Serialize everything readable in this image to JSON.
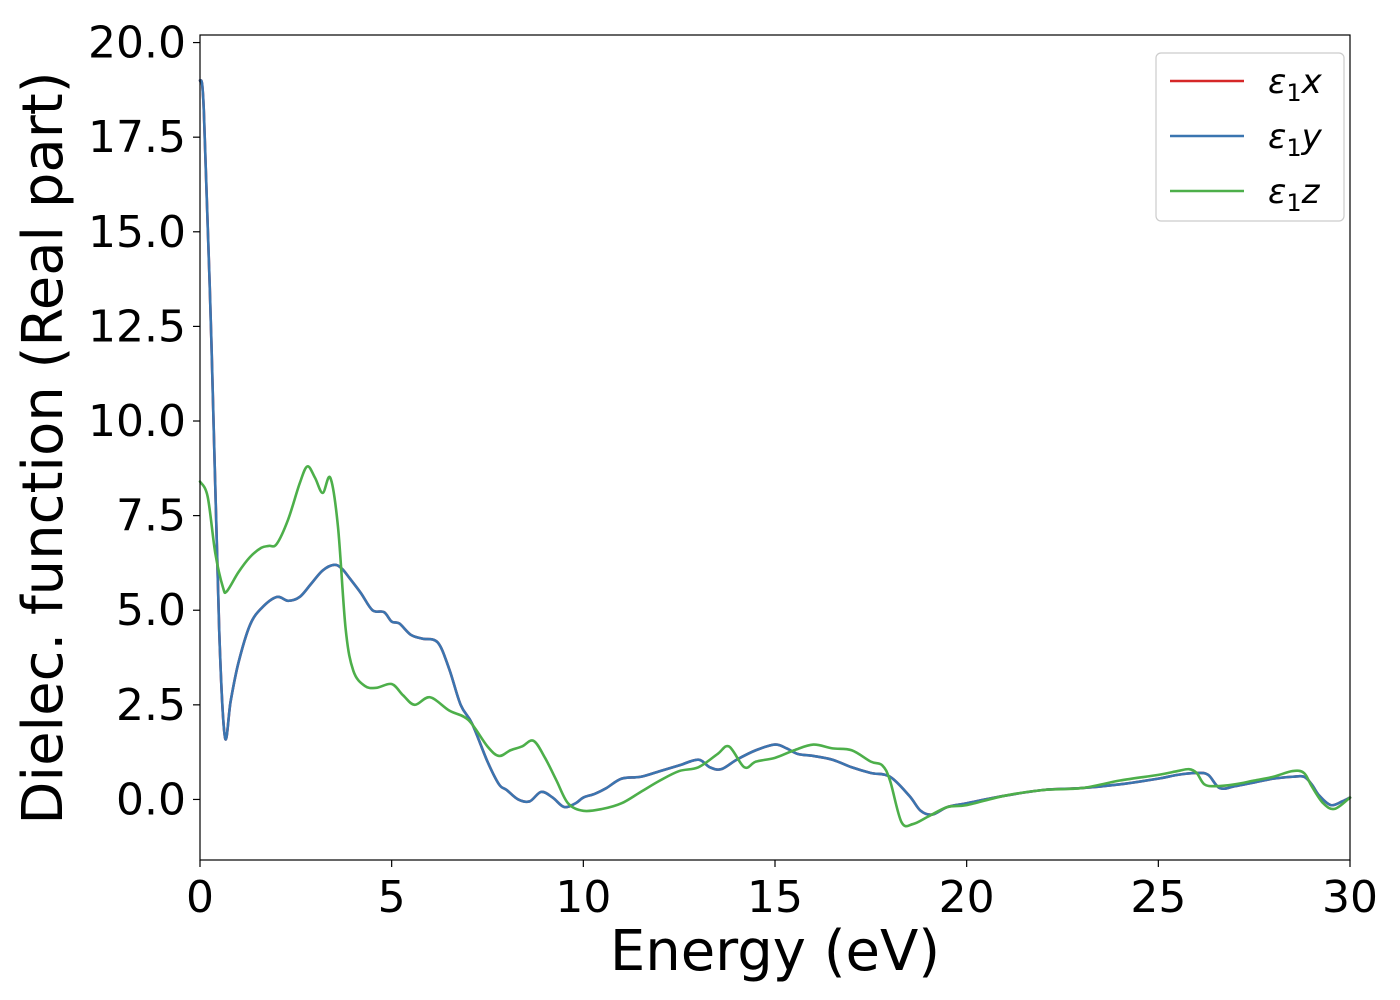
{
  "chart_data": {
    "type": "line",
    "xlabel": "Energy (eV)",
    "ylabel": "Dielec. function (Real part)",
    "xlim": [
      0,
      30
    ],
    "ylim": [
      -1.6,
      20.2
    ],
    "xticks": [
      0,
      5,
      10,
      15,
      20,
      25,
      30
    ],
    "xtick_labels": [
      "0",
      "5",
      "10",
      "15",
      "20",
      "25",
      "30"
    ],
    "yticks": [
      0.0,
      2.5,
      5.0,
      7.5,
      10.0,
      12.5,
      15.0,
      17.5,
      20.0
    ],
    "ytick_labels": [
      "0.0",
      "2.5",
      "5.0",
      "7.5",
      "10.0",
      "12.5",
      "15.0",
      "17.5",
      "20.0"
    ],
    "grid": false,
    "legend_position": "top-right",
    "series": [
      {
        "name": "ε1x",
        "label_base": "ε",
        "label_sub": "1",
        "label_var": "x",
        "color": "#d62728",
        "x": [
          0,
          0.1,
          0.3,
          0.5,
          0.65,
          0.8,
          1.0,
          1.3,
          1.6,
          2.0,
          2.3,
          2.6,
          2.9,
          3.2,
          3.5,
          3.7,
          3.9,
          4.2,
          4.5,
          4.8,
          5.0,
          5.2,
          5.5,
          5.8,
          6.2,
          6.5,
          6.8,
          7.1,
          7.5,
          7.8,
          8.0,
          8.3,
          8.6,
          8.9,
          9.2,
          9.5,
          9.8,
          10.0,
          10.3,
          10.6,
          11.0,
          11.5,
          12.0,
          12.5,
          13.0,
          13.3,
          13.6,
          14.0,
          14.5,
          15.0,
          15.3,
          15.6,
          16.0,
          16.5,
          17.0,
          17.5,
          18.0,
          18.5,
          18.8,
          19.1,
          19.5,
          20.0,
          21.0,
          22.0,
          23.0,
          24.0,
          25.0,
          25.5,
          26.0,
          26.3,
          26.6,
          27.0,
          27.5,
          28.0,
          28.5,
          28.8,
          29.0,
          29.2,
          29.5,
          29.8,
          30.0
        ],
        "y": [
          19.0,
          18.2,
          12.0,
          4.5,
          1.65,
          2.6,
          3.6,
          4.6,
          5.05,
          5.35,
          5.25,
          5.35,
          5.7,
          6.05,
          6.2,
          6.1,
          5.85,
          5.45,
          5.0,
          4.95,
          4.7,
          4.65,
          4.35,
          4.25,
          4.15,
          3.45,
          2.5,
          2.0,
          1.0,
          0.4,
          0.25,
          0.0,
          -0.05,
          0.2,
          0.05,
          -0.2,
          -0.1,
          0.05,
          0.15,
          0.3,
          0.55,
          0.6,
          0.75,
          0.9,
          1.05,
          0.85,
          0.8,
          1.05,
          1.3,
          1.45,
          1.35,
          1.2,
          1.15,
          1.05,
          0.85,
          0.7,
          0.6,
          0.1,
          -0.3,
          -0.4,
          -0.2,
          -0.1,
          0.1,
          0.25,
          0.3,
          0.4,
          0.55,
          0.65,
          0.7,
          0.65,
          0.3,
          0.35,
          0.45,
          0.55,
          0.6,
          0.6,
          0.4,
          0.1,
          -0.15,
          -0.05,
          0.05
        ]
      },
      {
        "name": "ε1y",
        "label_base": "ε",
        "label_sub": "1",
        "label_var": "y",
        "color": "#3a75b0",
        "x": [
          0,
          0.1,
          0.3,
          0.5,
          0.65,
          0.8,
          1.0,
          1.3,
          1.6,
          2.0,
          2.3,
          2.6,
          2.9,
          3.2,
          3.5,
          3.7,
          3.9,
          4.2,
          4.5,
          4.8,
          5.0,
          5.2,
          5.5,
          5.8,
          6.2,
          6.5,
          6.8,
          7.1,
          7.5,
          7.8,
          8.0,
          8.3,
          8.6,
          8.9,
          9.2,
          9.5,
          9.8,
          10.0,
          10.3,
          10.6,
          11.0,
          11.5,
          12.0,
          12.5,
          13.0,
          13.3,
          13.6,
          14.0,
          14.5,
          15.0,
          15.3,
          15.6,
          16.0,
          16.5,
          17.0,
          17.5,
          18.0,
          18.5,
          18.8,
          19.1,
          19.5,
          20.0,
          21.0,
          22.0,
          23.0,
          24.0,
          25.0,
          25.5,
          26.0,
          26.3,
          26.6,
          27.0,
          27.5,
          28.0,
          28.5,
          28.8,
          29.0,
          29.2,
          29.5,
          29.8,
          30.0
        ],
        "y": [
          19.0,
          18.2,
          12.0,
          4.5,
          1.65,
          2.6,
          3.6,
          4.6,
          5.05,
          5.35,
          5.25,
          5.35,
          5.7,
          6.05,
          6.2,
          6.1,
          5.85,
          5.45,
          5.0,
          4.95,
          4.7,
          4.65,
          4.35,
          4.25,
          4.15,
          3.45,
          2.5,
          2.0,
          1.0,
          0.4,
          0.25,
          0.0,
          -0.05,
          0.2,
          0.05,
          -0.2,
          -0.1,
          0.05,
          0.15,
          0.3,
          0.55,
          0.6,
          0.75,
          0.9,
          1.05,
          0.85,
          0.8,
          1.05,
          1.3,
          1.45,
          1.35,
          1.2,
          1.15,
          1.05,
          0.85,
          0.7,
          0.6,
          0.1,
          -0.3,
          -0.4,
          -0.2,
          -0.1,
          0.1,
          0.25,
          0.3,
          0.4,
          0.55,
          0.65,
          0.7,
          0.65,
          0.3,
          0.35,
          0.45,
          0.55,
          0.6,
          0.6,
          0.4,
          0.1,
          -0.15,
          -0.05,
          0.05
        ]
      },
      {
        "name": "ε1z",
        "label_base": "ε",
        "label_sub": "1",
        "label_var": "z",
        "color": "#4daf4a",
        "x": [
          0,
          0.2,
          0.4,
          0.6,
          0.7,
          1.0,
          1.3,
          1.6,
          1.8,
          2.0,
          2.3,
          2.6,
          2.8,
          3.0,
          3.2,
          3.4,
          3.6,
          3.8,
          4.0,
          4.3,
          4.6,
          5.0,
          5.3,
          5.6,
          6.0,
          6.5,
          7.0,
          7.5,
          7.8,
          8.1,
          8.4,
          8.7,
          9.0,
          9.3,
          9.6,
          10.0,
          10.5,
          11.0,
          11.5,
          12.0,
          12.5,
          13.0,
          13.5,
          13.8,
          14.2,
          14.5,
          15.0,
          15.5,
          16.0,
          16.5,
          17.0,
          17.5,
          17.8,
          18.0,
          18.3,
          18.6,
          19.0,
          19.5,
          20.0,
          21.0,
          22.0,
          23.0,
          24.0,
          25.0,
          25.5,
          25.8,
          26.0,
          26.2,
          26.5,
          27.0,
          27.5,
          28.0,
          28.5,
          28.8,
          29.0,
          29.3,
          29.6,
          30.0
        ],
        "y": [
          8.4,
          8.0,
          6.5,
          5.6,
          5.5,
          6.0,
          6.4,
          6.65,
          6.7,
          6.75,
          7.4,
          8.35,
          8.8,
          8.5,
          8.1,
          8.5,
          7.2,
          4.5,
          3.4,
          3.0,
          2.95,
          3.05,
          2.75,
          2.5,
          2.7,
          2.35,
          2.1,
          1.4,
          1.15,
          1.3,
          1.4,
          1.55,
          1.1,
          0.5,
          -0.1,
          -0.3,
          -0.25,
          -0.1,
          0.2,
          0.5,
          0.75,
          0.85,
          1.2,
          1.4,
          0.85,
          1.0,
          1.1,
          1.3,
          1.45,
          1.35,
          1.3,
          1.0,
          0.9,
          0.5,
          -0.6,
          -0.65,
          -0.45,
          -0.2,
          -0.15,
          0.1,
          0.25,
          0.3,
          0.5,
          0.65,
          0.75,
          0.8,
          0.7,
          0.4,
          0.35,
          0.4,
          0.5,
          0.6,
          0.75,
          0.7,
          0.35,
          -0.1,
          -0.25,
          0.05
        ]
      }
    ]
  }
}
